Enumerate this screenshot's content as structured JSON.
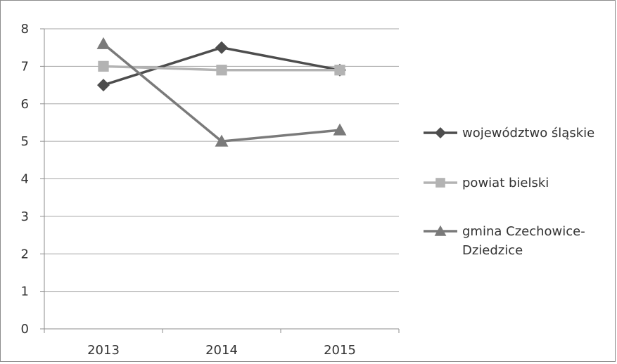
{
  "chart_data": {
    "type": "line",
    "categories": [
      "2013",
      "2014",
      "2015"
    ],
    "ylim": [
      0,
      8
    ],
    "yticks": [
      0,
      1,
      2,
      3,
      4,
      5,
      6,
      7,
      8
    ],
    "grid": true,
    "legend_position": "right",
    "series": [
      {
        "name": "województwo śląskie",
        "values": [
          6.5,
          7.5,
          6.9
        ],
        "color": "#4d4d4d",
        "marker": "diamond"
      },
      {
        "name": "powiat bielski",
        "values": [
          7.0,
          6.9,
          6.9
        ],
        "color": "#b3b3b3",
        "marker": "square"
      },
      {
        "name": "gmina Czechowice-Dziedzice",
        "values": [
          7.6,
          5.0,
          5.3
        ],
        "color": "#7a7a7a",
        "marker": "triangle"
      }
    ]
  }
}
